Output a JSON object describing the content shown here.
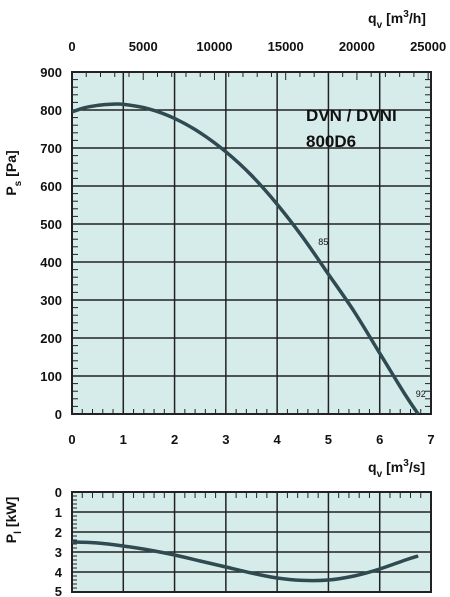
{
  "chart_data": [
    {
      "type": "line",
      "title": "DVN / DVNI",
      "subtitle": "800D6",
      "xlabel": "q_v [m³/s]",
      "xlabel_parts": {
        "main": "q",
        "sub": "v",
        "unit_pre": "[m",
        "unit_sup": "3",
        "unit_post": "/s]"
      },
      "x2label": "q_v [m³/h]",
      "x2label_parts": {
        "main": "q",
        "sub": "v",
        "unit_pre": "[m",
        "unit_sup": "3",
        "unit_post": "/h]"
      },
      "ylabel": "P_s [Pa]",
      "ylabel_parts": {
        "main": "P",
        "sub": "s",
        "unit": "[Pa]"
      },
      "xlim": [
        0,
        7
      ],
      "ylim": [
        0,
        900
      ],
      "x2lim": [
        0,
        25200
      ],
      "x_ticks": [
        0,
        1,
        2,
        3,
        4,
        5,
        6,
        7
      ],
      "y_ticks": [
        0,
        100,
        200,
        300,
        400,
        500,
        600,
        700,
        800,
        900
      ],
      "x2_ticks": [
        0,
        5000,
        10000,
        15000,
        20000,
        25000
      ],
      "grid": true,
      "series": [
        {
          "x": [
            0,
            0.25,
            0.5,
            0.75,
            1.0,
            1.5,
            2.0,
            2.5,
            3.0,
            3.5,
            4.0,
            4.5,
            5.0,
            5.5,
            6.0,
            6.5,
            6.75
          ],
          "y": [
            795,
            806,
            812,
            815,
            815,
            803,
            778,
            740,
            690,
            628,
            552,
            465,
            368,
            270,
            160,
            50,
            0
          ]
        }
      ],
      "point_labels": [
        {
          "text": "85",
          "x": 4.9,
          "y": 445
        },
        {
          "text": "92",
          "x": 6.8,
          "y": 45
        }
      ]
    },
    {
      "type": "line",
      "xlabel": "",
      "ylabel": "P_l [kW]",
      "ylabel_parts": {
        "main": "P",
        "sub": "l",
        "unit": "[kW]"
      },
      "xlim": [
        0,
        7
      ],
      "ylim": [
        0,
        5
      ],
      "y_inverted": true,
      "y_ticks": [
        0,
        1,
        2,
        3,
        4,
        5
      ],
      "x_ticks": [
        0,
        1,
        2,
        3,
        4,
        5,
        6,
        7
      ],
      "grid": true,
      "series": [
        {
          "x": [
            0,
            0.5,
            1.0,
            1.5,
            2.0,
            2.5,
            3.0,
            3.5,
            4.0,
            4.5,
            5.0,
            5.5,
            6.0,
            6.5,
            6.75
          ],
          "y": [
            2.5,
            2.55,
            2.7,
            2.9,
            3.15,
            3.45,
            3.75,
            4.05,
            4.3,
            4.42,
            4.4,
            4.2,
            3.85,
            3.4,
            3.2
          ]
        }
      ]
    }
  ],
  "colors": {
    "plot_bg": "#d6ecea",
    "grid": "#222222",
    "curve": "#2f4a50",
    "text": "#111111"
  }
}
